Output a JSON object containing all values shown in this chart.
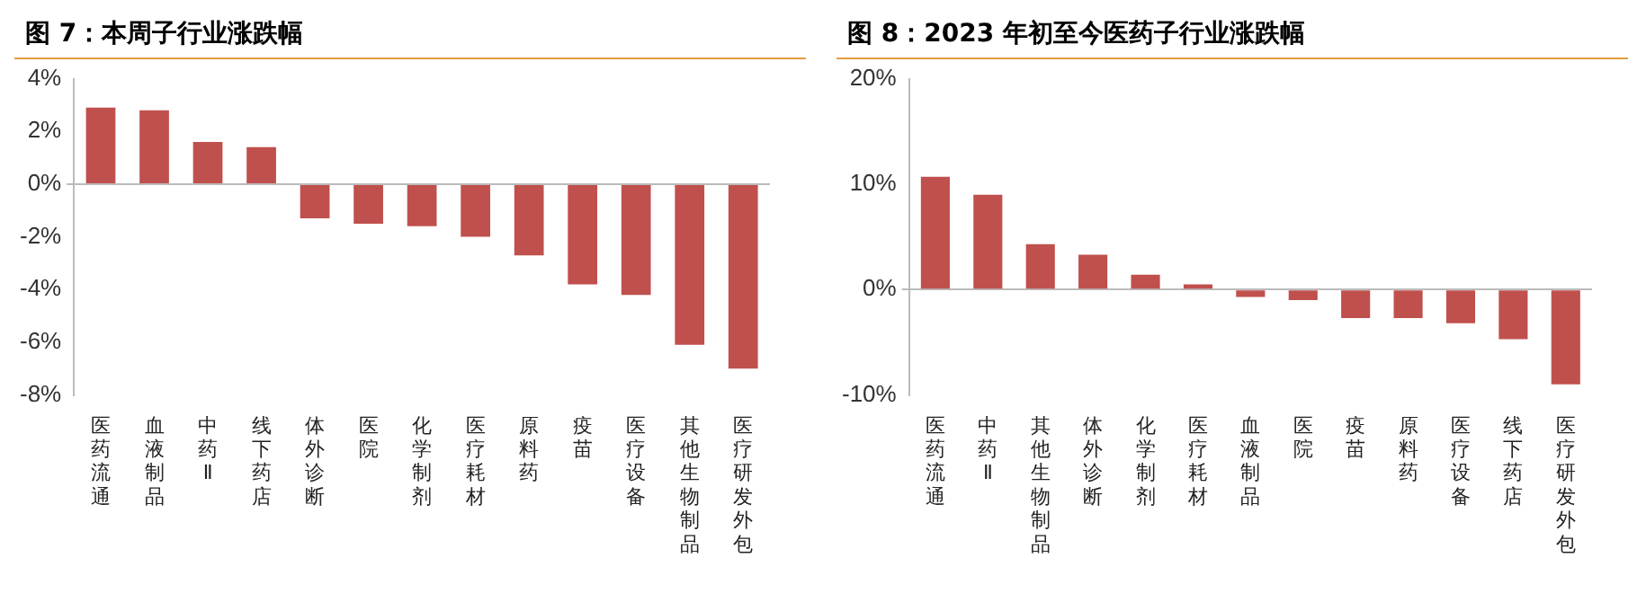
{
  "chart_data": [
    {
      "type": "bar",
      "title": "图 7：本周子行业涨跌幅",
      "categories": [
        "医药流通",
        "血液制品",
        "中药Ⅱ",
        "线下药店",
        "体外诊断",
        "医院",
        "化学制剂",
        "医疗耗材",
        "原料药",
        "疫苗",
        "医疗设备",
        "其他生物制品",
        "医疗研发外包"
      ],
      "values": [
        2.9,
        2.8,
        1.6,
        1.4,
        -1.3,
        -1.5,
        -1.6,
        -2.0,
        -2.7,
        -3.8,
        -4.2,
        -6.1,
        -7.0
      ],
      "color": "#c0504d",
      "ylim": [
        -8,
        4
      ],
      "yticks": [
        {
          "value": -8,
          "label": "-8%"
        },
        {
          "value": -6,
          "label": "-6%"
        },
        {
          "value": -4,
          "label": "-4%"
        },
        {
          "value": -2,
          "label": "-2%"
        },
        {
          "value": 0,
          "label": "0%"
        },
        {
          "value": 2,
          "label": "2%"
        },
        {
          "value": 4,
          "label": "4%"
        }
      ],
      "legend": false
    },
    {
      "type": "bar",
      "title": "图 8：2023 年初至今医药子行业涨跌幅",
      "categories": [
        "医药流通",
        "中药Ⅱ",
        "其他生物制品",
        "体外诊断",
        "化学制剂",
        "医疗耗材",
        "血液制品",
        "医院",
        "疫苗",
        "原料药",
        "医疗设备",
        "线下药店",
        "医疗研发外包"
      ],
      "values": [
        10.7,
        9.0,
        4.3,
        3.3,
        1.4,
        0.5,
        -0.7,
        -1.0,
        -2.7,
        -2.7,
        -3.2,
        -4.7,
        -9.0
      ],
      "color": "#c0504d",
      "ylim": [
        -10,
        20
      ],
      "yticks": [
        {
          "value": -10,
          "label": "-10%"
        },
        {
          "value": 0,
          "label": "0%"
        },
        {
          "value": 10,
          "label": "10%"
        },
        {
          "value": 20,
          "label": "20%"
        }
      ],
      "legend": false
    }
  ]
}
